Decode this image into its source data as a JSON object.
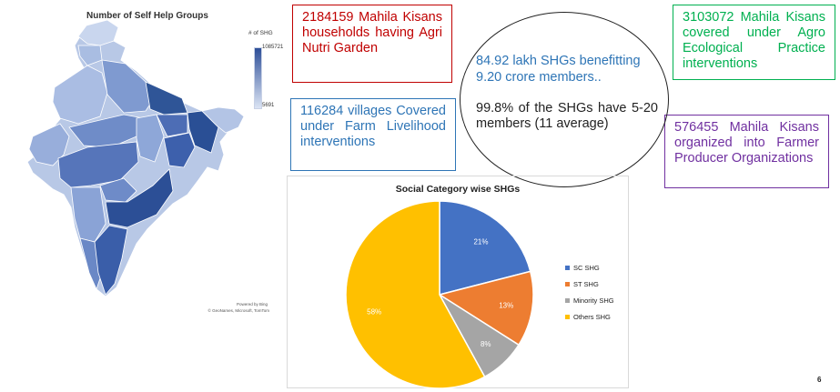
{
  "map": {
    "title": "Number of Self Help Groups",
    "legend_title": "# of SHG",
    "legend_max": "1085721",
    "legend_min": "5691",
    "credit_line1": "Powered by Bing",
    "credit_line2": "© GeoNames, Microsoft, TomTom"
  },
  "boxes": {
    "agri_nutri": "2184159 Mahila Kisans households having Agri Nutri Garden",
    "villages": "116284 villages Covered under Farm Livelihood interventions",
    "agro_ecological": "3103072 Mahila Kisans covered under Agro Ecological Practice interventions",
    "fpo": "576455 Mahila Kisans organized into Farmer Producer Organizations"
  },
  "oval": {
    "line1": "84.92 lakh SHGs benefitting 9.20 crore members..",
    "line2": "99.8% of the SHGs have 5-20 members (11 average)"
  },
  "page_number": "6",
  "colors": {
    "red": "#c00000",
    "blue": "#2e75b6",
    "green": "#00b050",
    "purple": "#7030a0"
  },
  "chart_data": {
    "type": "pie",
    "title": "Social Category wise SHGs",
    "legend_position": "right",
    "categories": [
      "SC SHG",
      "ST SHG",
      "Minority SHG",
      "Others SHG"
    ],
    "values": [
      21,
      13,
      8,
      58
    ],
    "labels": [
      "21%",
      "13%",
      "8%",
      "58%"
    ],
    "colors": [
      "#4472c4",
      "#ed7d31",
      "#a5a5a5",
      "#ffc000"
    ]
  }
}
